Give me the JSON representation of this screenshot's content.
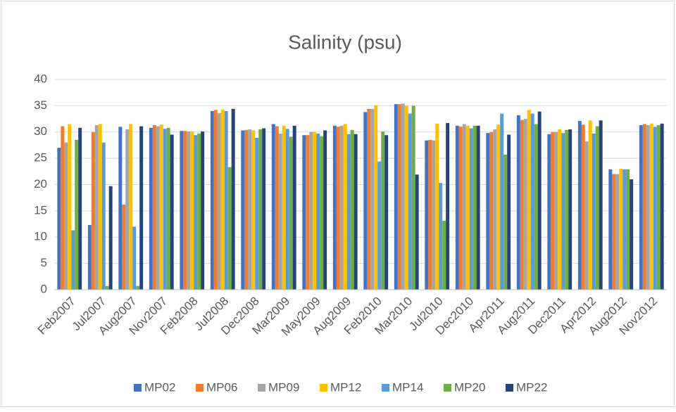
{
  "chart_data": {
    "type": "bar",
    "title": "Salinity (psu)",
    "categories": [
      "Feb2007",
      "Jul2007",
      "Aug2007",
      "Nov2007",
      "Feb2008",
      "Jul2008",
      "Dec2008",
      "Mar2009",
      "May2009",
      "Aug2009",
      "Feb2010",
      "Mar2010",
      "Jul2010",
      "Dec2010",
      "Apr2011",
      "Aug2011",
      "Dec2011",
      "Apr2012",
      "Aug2012",
      "Nov2012"
    ],
    "series": [
      {
        "name": "MP02",
        "color": "#4472c4",
        "values": [
          27,
          12.3,
          31,
          30.8,
          30.2,
          34,
          30.3,
          31.5,
          29.4,
          31.2,
          33.8,
          35.3,
          28.4,
          31.2,
          29.8,
          33.2,
          29.6,
          32.1,
          22.9,
          31.3
        ]
      },
      {
        "name": "MP06",
        "color": "#ed7d31",
        "values": [
          31.1,
          30,
          16.2,
          31.3,
          30.2,
          34.2,
          30.4,
          31.1,
          29.4,
          31,
          34.4,
          35.3,
          28.5,
          31,
          30,
          32.3,
          30,
          31.4,
          22,
          31.5
        ]
      },
      {
        "name": "MP09",
        "color": "#a5a5a5",
        "values": [
          28,
          31.3,
          30.5,
          31.1,
          30.1,
          33.6,
          30.5,
          29.7,
          30,
          31.2,
          34.4,
          35.4,
          28.4,
          31.5,
          30.5,
          32.5,
          30,
          28.2,
          22,
          31.3
        ]
      },
      {
        "name": "MP12",
        "color": "#ffc000",
        "values": [
          31.5,
          31.5,
          31.5,
          31.4,
          30.1,
          34.3,
          30.3,
          31.2,
          30,
          31.5,
          35.1,
          35,
          31.6,
          31.2,
          31.4,
          34.2,
          30.5,
          32.2,
          23,
          31.6
        ]
      },
      {
        "name": "MP14",
        "color": "#5b9bd5",
        "values": [
          11.3,
          28,
          12,
          30.6,
          29.4,
          34,
          28.9,
          30.6,
          29.7,
          29.6,
          24.4,
          33.5,
          20.3,
          30.7,
          33.5,
          33.5,
          29.8,
          29.7,
          22.9,
          31
        ]
      },
      {
        "name": "MP20",
        "color": "#70ad47",
        "values": [
          28.5,
          0.7,
          0.7,
          30.8,
          29.7,
          23.3,
          30.5,
          29.1,
          29.2,
          30.4,
          30.1,
          35,
          13.1,
          31.2,
          25.7,
          31.5,
          30.4,
          31.1,
          22.9,
          31.3
        ]
      },
      {
        "name": "MP22",
        "color": "#264478",
        "values": [
          30.8,
          19.7,
          31.1,
          29.5,
          30.1,
          34.4,
          30.7,
          31.2,
          30.3,
          29.6,
          29.4,
          21.9,
          31.7,
          31.2,
          29.5,
          33.9,
          30.5,
          32.2,
          21,
          31.6
        ]
      }
    ],
    "ylim": [
      0,
      40
    ],
    "yticks": [
      0,
      5,
      10,
      15,
      20,
      25,
      30,
      35,
      40
    ],
    "grid": true,
    "legend": "bottom"
  }
}
